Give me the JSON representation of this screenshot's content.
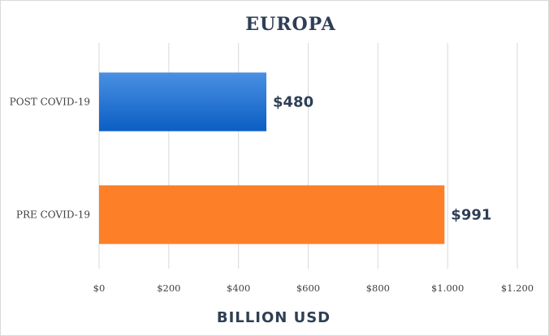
{
  "chart_data": {
    "type": "bar",
    "orientation": "horizontal",
    "title": "EUROPA",
    "xlabel": "BILLION USD",
    "ylabel": "",
    "categories": [
      "POST COVID-19",
      "PRE COVID-19"
    ],
    "values": [
      480,
      991
    ],
    "data_labels": [
      "$480",
      "$991"
    ],
    "bar_colors": [
      "#1e73d2",
      "#fd7f27"
    ],
    "xlim": [
      0,
      1200
    ],
    "x_ticks": [
      0,
      200,
      400,
      600,
      800,
      1000,
      1200
    ],
    "x_tick_labels": [
      "$0",
      "$200",
      "$400",
      "$600",
      "$800",
      "$1.000",
      "$1.200"
    ],
    "grid": "vertical",
    "legend": "none"
  }
}
